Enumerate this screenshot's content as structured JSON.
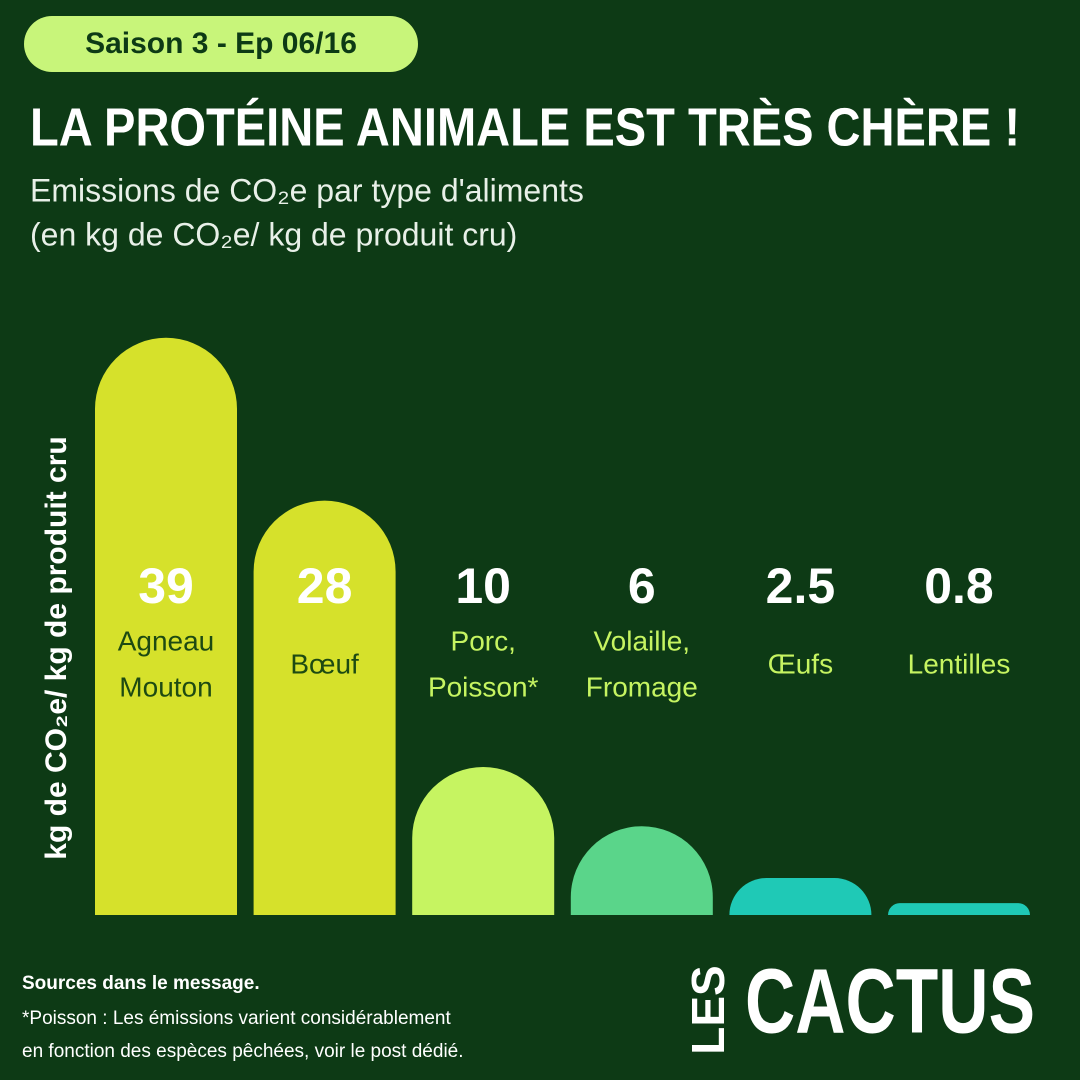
{
  "chart_data": {
    "type": "bar",
    "badge": "Saison 3 - Ep 06/16",
    "title": "LA PROTÉINE ANIMALE EST TRÈS CHÈRE !",
    "subtitle": [
      "Emissions de CO₂e par type d'aliments",
      "(en kg de CO₂e/ kg de produit cru)"
    ],
    "y_label": "kg de CO₂e/ kg de produit cru",
    "categories": [
      [
        "Agneau",
        "Mouton"
      ],
      [
        "Bœuf"
      ],
      [
        "Porc,",
        "Poisson*"
      ],
      [
        "Volaille,",
        "Fromage"
      ],
      [
        "Œufs"
      ],
      [
        "Lentilles"
      ]
    ],
    "values": [
      39,
      28,
      10,
      6,
      2.5,
      0.8
    ],
    "colors": [
      "#d6e12b",
      "#d6e12b",
      "#c6f461",
      "#5ad58a",
      "#1fc9b6",
      "#1fc9b6"
    ],
    "footer": {
      "sources": "Sources dans le message.",
      "note": [
        "*Poisson : Les émissions varient considérablement",
        "en fonction des espèces pêchées, voir le post dédié."
      ]
    },
    "brand": {
      "small": "LES",
      "big": "CACTUS"
    }
  }
}
